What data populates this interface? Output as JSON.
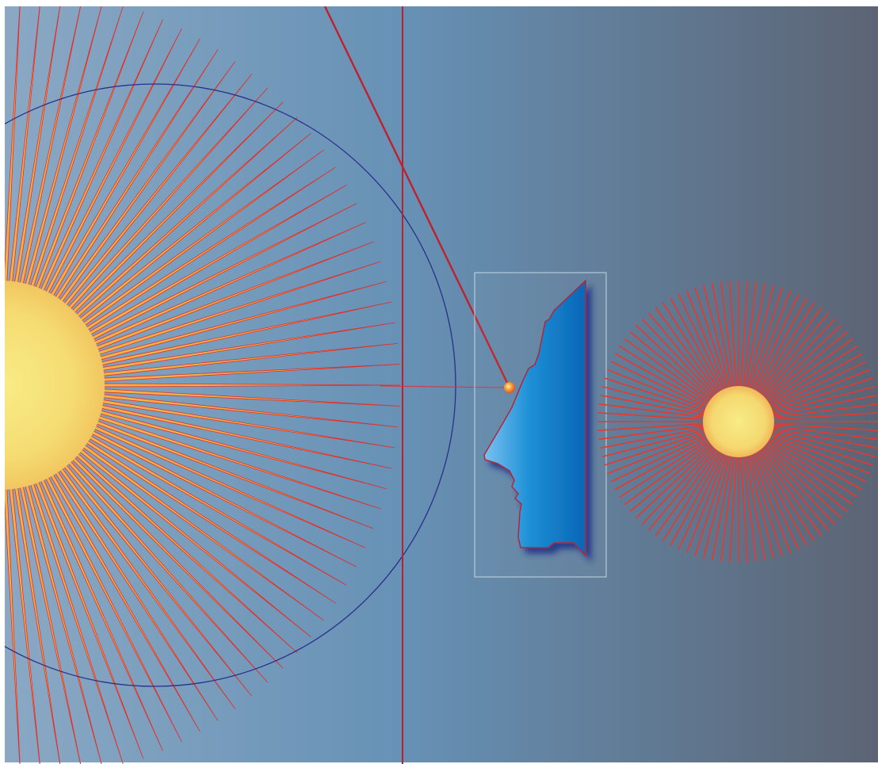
{
  "scene": {
    "description_free": true,
    "background": {
      "left": "#8aa8c4",
      "mid": "#6a95b6",
      "right": "#5c6474"
    },
    "large_sun": {
      "ray_count": 80,
      "core_color": "#f7e67a",
      "ray_color": "#f0b040",
      "ray_edge": "#e0302a"
    },
    "small_sun": {
      "ray_count": 100,
      "core_color": "#f7e67a",
      "ray_color": "#e8382e"
    },
    "circle_stroke": "#2a2f8a",
    "line_color": "#c0202e",
    "face": {
      "fill_light": "#6ab8ee",
      "fill_dark": "#0a6fbf",
      "outline": "#b0283a",
      "shadow": "#2a3a8a"
    },
    "marker_color": "#f08a30",
    "frame_stroke": "#c6d6e4"
  }
}
